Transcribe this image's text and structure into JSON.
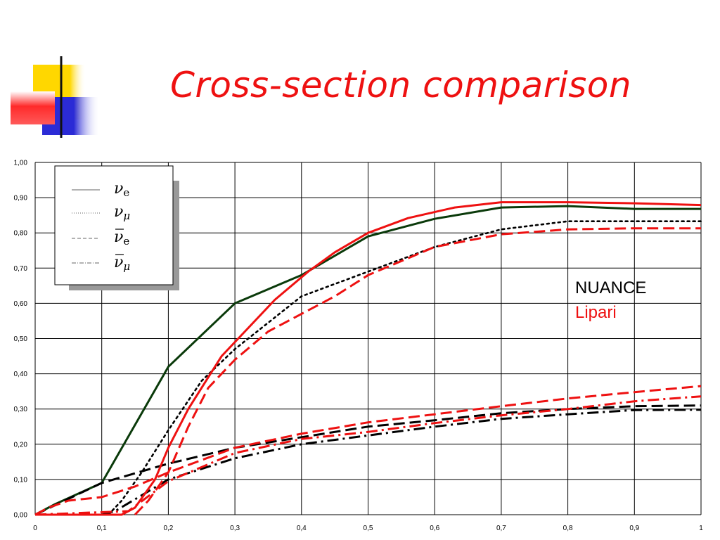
{
  "title": "Cross-section comparison",
  "colors": {
    "title": "#ee1111",
    "nuance": "#0a3a0a",
    "nuance_black": "#000000",
    "lipari": "#ee1111",
    "grid": "#000000",
    "deco_yellow": "#ffd700",
    "deco_blue": "#2b2bd6",
    "deco_red": "#ff2a2a"
  },
  "labels": {
    "nuance": "NUANCE",
    "lipari": "Lipari"
  },
  "legend": {
    "entries": [
      {
        "symbol": "ν",
        "subscript": "e",
        "bar": false,
        "style": "solid"
      },
      {
        "symbol": "ν",
        "subscript": "μ",
        "bar": false,
        "style": "dotted"
      },
      {
        "symbol": "ν",
        "subscript": "e",
        "bar": true,
        "style": "dashed"
      },
      {
        "symbol": "ν",
        "subscript": "μ",
        "bar": true,
        "style": "dashdot"
      }
    ]
  },
  "chart_data": {
    "type": "line",
    "xlim": [
      0,
      1
    ],
    "ylim": [
      0,
      1
    ],
    "x_ticks": [
      0,
      0.1,
      0.2,
      0.3,
      0.4,
      0.5,
      0.6,
      0.7,
      0.8,
      0.9,
      1
    ],
    "x_tick_labels": [
      "0",
      "0,1",
      "0,2",
      "0,3",
      "0,4",
      "0,5",
      "0,6",
      "0,7",
      "0,8",
      "0,9",
      "1"
    ],
    "y_ticks": [
      0,
      0.1,
      0.2,
      0.3,
      0.4,
      0.5,
      0.6,
      0.7,
      0.8,
      0.9,
      1
    ],
    "y_tick_labels": [
      "0,00",
      "0,10",
      "0,20",
      "0,30",
      "0,40",
      "0,50",
      "0,60",
      "0,70",
      "0,80",
      "0,90",
      "1,00"
    ],
    "grid": true,
    "legend_position": "top-left",
    "series": [
      {
        "group": "NUANCE",
        "flavor": "nu_e",
        "style": "solid",
        "color": "#0a3a0a",
        "points": [
          [
            0,
            0
          ],
          [
            0.03,
            0.03
          ],
          [
            0.1,
            0.09
          ],
          [
            0.2,
            0.42
          ],
          [
            0.3,
            0.6
          ],
          [
            0.4,
            0.68
          ],
          [
            0.5,
            0.79
          ],
          [
            0.6,
            0.84
          ],
          [
            0.7,
            0.872
          ],
          [
            0.8,
            0.876
          ],
          [
            0.9,
            0.868
          ],
          [
            1,
            0.868
          ]
        ]
      },
      {
        "group": "NUANCE",
        "flavor": "nu_mu",
        "style": "dotted",
        "color": "#000000",
        "points": [
          [
            0.11,
            0
          ],
          [
            0.13,
            0.04
          ],
          [
            0.16,
            0.12
          ],
          [
            0.2,
            0.24
          ],
          [
            0.25,
            0.38
          ],
          [
            0.3,
            0.47
          ],
          [
            0.4,
            0.62
          ],
          [
            0.5,
            0.69
          ],
          [
            0.6,
            0.76
          ],
          [
            0.7,
            0.81
          ],
          [
            0.8,
            0.833
          ],
          [
            0.9,
            0.833
          ],
          [
            1,
            0.833
          ]
        ]
      },
      {
        "group": "NUANCE",
        "flavor": "anti_nu_e",
        "style": "dashed",
        "color": "#000000",
        "points": [
          [
            0,
            0
          ],
          [
            0.1,
            0.09
          ],
          [
            0.2,
            0.145
          ],
          [
            0.3,
            0.19
          ],
          [
            0.4,
            0.22
          ],
          [
            0.5,
            0.25
          ],
          [
            0.6,
            0.268
          ],
          [
            0.7,
            0.288
          ],
          [
            0.8,
            0.3
          ],
          [
            0.9,
            0.308
          ],
          [
            1,
            0.31
          ]
        ]
      },
      {
        "group": "NUANCE",
        "flavor": "anti_nu_mu",
        "style": "dashdot",
        "color": "#000000",
        "points": [
          [
            0.1,
            0
          ],
          [
            0.12,
            0.01
          ],
          [
            0.2,
            0.1
          ],
          [
            0.3,
            0.16
          ],
          [
            0.4,
            0.2
          ],
          [
            0.5,
            0.225
          ],
          [
            0.6,
            0.25
          ],
          [
            0.7,
            0.272
          ],
          [
            0.8,
            0.285
          ],
          [
            0.9,
            0.297
          ],
          [
            1,
            0.298
          ]
        ]
      },
      {
        "group": "Lipari",
        "flavor": "nu_e",
        "style": "solid",
        "color": "#ee1111",
        "points": [
          [
            0,
            0
          ],
          [
            0.13,
            0
          ],
          [
            0.15,
            0.02
          ],
          [
            0.18,
            0.1
          ],
          [
            0.2,
            0.19
          ],
          [
            0.23,
            0.3
          ],
          [
            0.26,
            0.39
          ],
          [
            0.28,
            0.45
          ],
          [
            0.32,
            0.53
          ],
          [
            0.36,
            0.61
          ],
          [
            0.41,
            0.69
          ],
          [
            0.45,
            0.745
          ],
          [
            0.5,
            0.8
          ],
          [
            0.56,
            0.842
          ],
          [
            0.63,
            0.872
          ],
          [
            0.7,
            0.887
          ],
          [
            0.8,
            0.887
          ],
          [
            0.9,
            0.884
          ],
          [
            1,
            0.879
          ]
        ]
      },
      {
        "group": "Lipari",
        "flavor": "nu_mu",
        "style": "dashed",
        "color": "#ee1111",
        "points": [
          [
            0.15,
            0
          ],
          [
            0.17,
            0.04
          ],
          [
            0.2,
            0.12
          ],
          [
            0.23,
            0.25
          ],
          [
            0.26,
            0.36
          ],
          [
            0.3,
            0.44
          ],
          [
            0.35,
            0.52
          ],
          [
            0.4,
            0.57
          ],
          [
            0.45,
            0.62
          ],
          [
            0.5,
            0.68
          ],
          [
            0.55,
            0.72
          ],
          [
            0.6,
            0.76
          ],
          [
            0.7,
            0.796
          ],
          [
            0.8,
            0.81
          ],
          [
            0.9,
            0.813
          ],
          [
            1,
            0.813
          ]
        ]
      },
      {
        "group": "Lipari",
        "flavor": "anti_nu_e",
        "style": "dashed",
        "color": "#ee1111",
        "points": [
          [
            0,
            0
          ],
          [
            0.02,
            0.02
          ],
          [
            0.05,
            0.04
          ],
          [
            0.1,
            0.05
          ],
          [
            0.15,
            0.08
          ],
          [
            0.2,
            0.12
          ],
          [
            0.3,
            0.19
          ],
          [
            0.4,
            0.23
          ],
          [
            0.5,
            0.262
          ],
          [
            0.6,
            0.285
          ],
          [
            0.7,
            0.308
          ],
          [
            0.8,
            0.33
          ],
          [
            0.9,
            0.348
          ],
          [
            1,
            0.365
          ]
        ]
      },
      {
        "group": "Lipari",
        "flavor": "anti_nu_mu",
        "style": "dashdot",
        "color": "#ee1111",
        "points": [
          [
            0,
            0
          ],
          [
            0.14,
            0.01
          ],
          [
            0.2,
            0.095
          ],
          [
            0.3,
            0.175
          ],
          [
            0.4,
            0.215
          ],
          [
            0.5,
            0.235
          ],
          [
            0.6,
            0.26
          ],
          [
            0.7,
            0.282
          ],
          [
            0.8,
            0.3
          ],
          [
            0.9,
            0.322
          ],
          [
            1,
            0.336
          ]
        ]
      }
    ]
  }
}
